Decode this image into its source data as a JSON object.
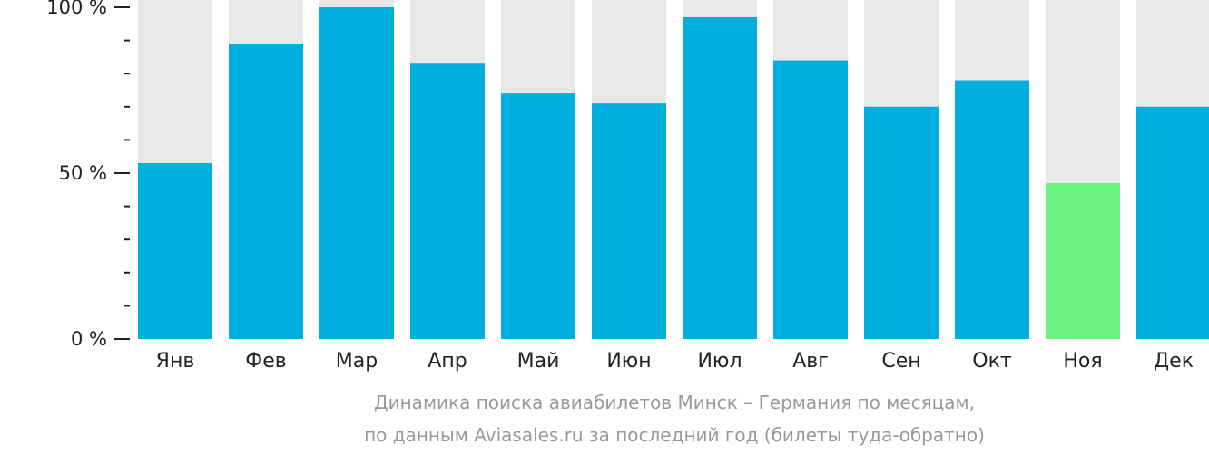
{
  "chart_data": {
    "type": "bar",
    "categories": [
      "Янв",
      "Фев",
      "Мар",
      "Апр",
      "Май",
      "Июн",
      "Июл",
      "Авг",
      "Сен",
      "Окт",
      "Ноя",
      "Дек"
    ],
    "values": [
      53,
      89,
      100,
      83,
      74,
      71,
      97,
      84,
      70,
      78,
      47,
      70
    ],
    "highlight_index": 10,
    "ylim": [
      0,
      100
    ],
    "yticks": [
      {
        "value": 100,
        "label": "100 %"
      },
      {
        "value": 50,
        "label": "50 %"
      },
      {
        "value": 0,
        "label": "0 %"
      }
    ],
    "minor_tick_step": 10,
    "caption_line1": "Динамика поиска авиабилетов Минск – Германия по месяцам,",
    "caption_line2": "по данным Aviasales.ru за последний год (билеты туда-обратно)",
    "colors": {
      "bar": "#00afdb",
      "highlight": "#6ef283",
      "track": "#e8e8e8",
      "axis": "#222222",
      "caption": "#999999"
    }
  }
}
